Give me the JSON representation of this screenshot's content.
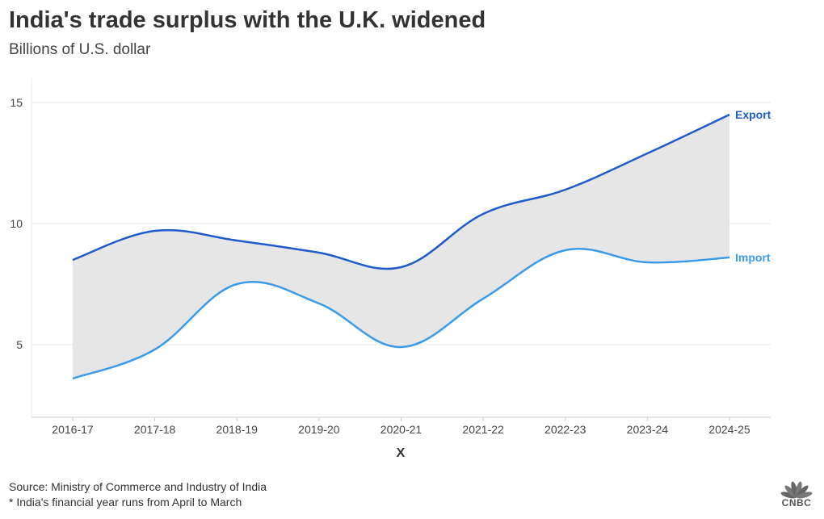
{
  "header": {
    "title": "India's trade surplus with the U.K. widened",
    "subtitle": "Billions of U.S. dollar"
  },
  "footer": {
    "source": "Source: Ministry of Commerce and Industry of India",
    "note": "* India's financial year runs from April to March"
  },
  "logo": {
    "text": "CNBC"
  },
  "colors": {
    "export": "#1f5cc9",
    "import": "#3a9be8",
    "fill": "#e6e6e6",
    "grid": "#e9e9e9",
    "axis": "#cccccc",
    "tick_text": "#444444"
  },
  "chart_data": {
    "type": "area",
    "title": "India's trade surplus with the U.K. widened",
    "subtitle": "Billions of U.S. dollar",
    "xlabel": "X",
    "ylabel": "",
    "categories": [
      "2016-17",
      "2017-18",
      "2018-19",
      "2019-20",
      "2020-21",
      "2021-22",
      "2022-23",
      "2023-24",
      "2024-25"
    ],
    "yticks": [
      5,
      10,
      15
    ],
    "ylim": [
      2,
      16
    ],
    "series": [
      {
        "name": "Export",
        "values": [
          8.5,
          9.7,
          9.3,
          8.8,
          8.2,
          10.4,
          11.4,
          12.9,
          14.5
        ]
      },
      {
        "name": "Import",
        "values": [
          3.6,
          4.8,
          7.5,
          6.7,
          4.9,
          6.9,
          8.9,
          8.4,
          8.6
        ]
      }
    ],
    "fill_between": true,
    "legend": "direct labels at line ends"
  }
}
